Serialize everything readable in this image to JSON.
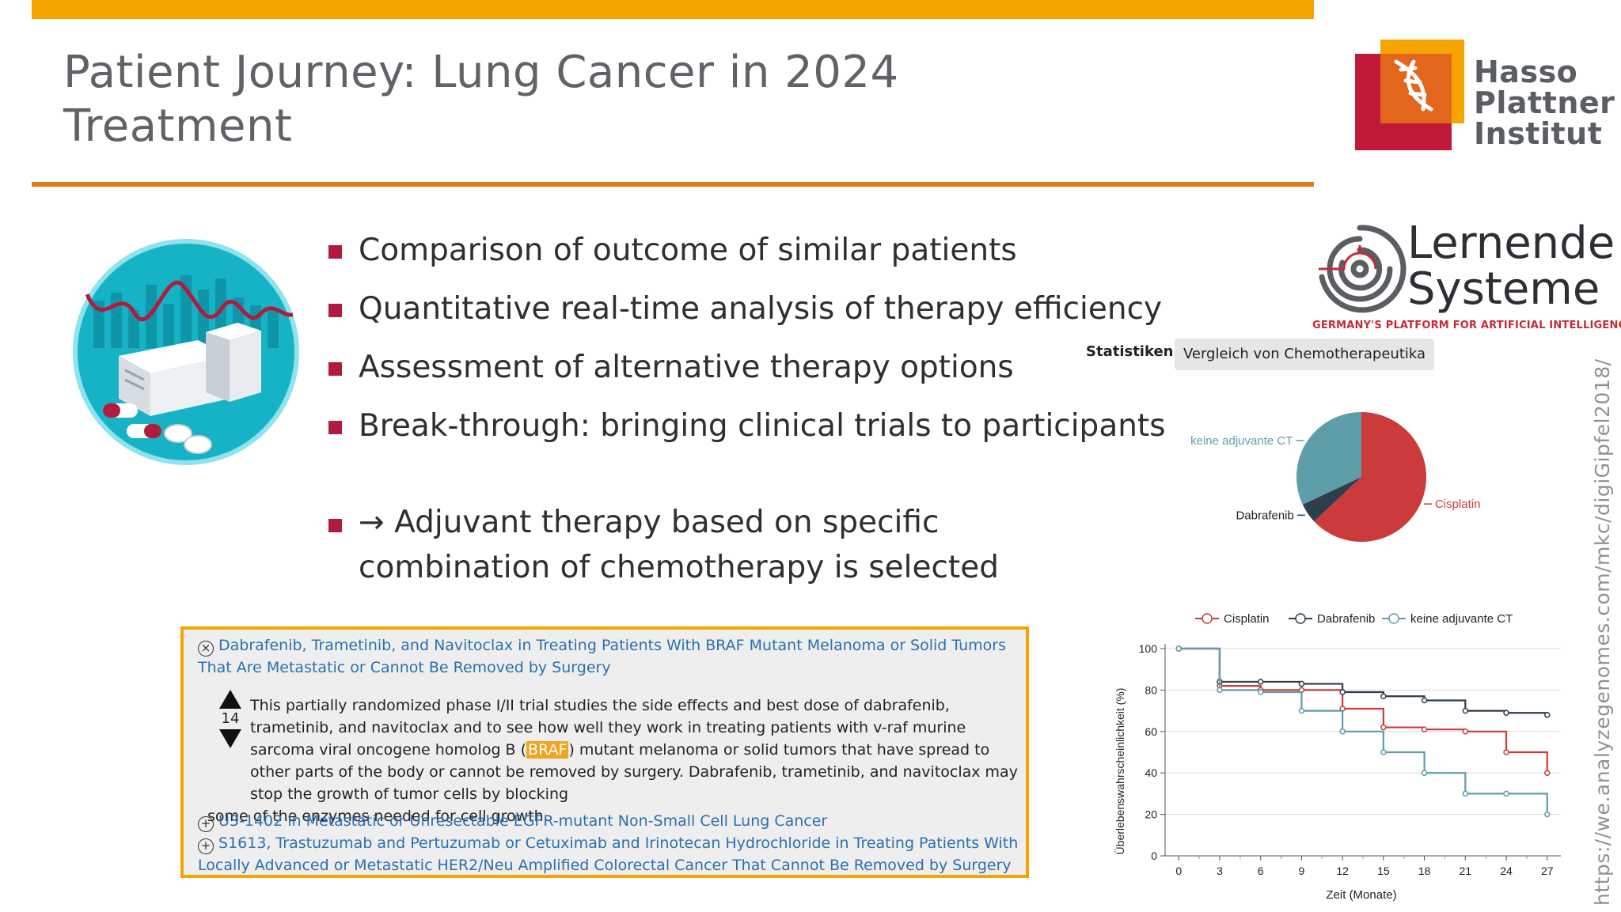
{
  "slide": {
    "title_line1": "Patient Journey: Lung Cancer in 2024",
    "title_line2": "Treatment",
    "side_url": "https://we.analyzegenomes.com/mkc/digiGipfel2018/"
  },
  "hpi_logo": {
    "line1": "Hasso",
    "line2": "Plattner",
    "line3": "Institut"
  },
  "ls_logo": {
    "word1": "Lernende",
    "word2": "Systeme",
    "tagline": "GERMANY'S PLATFORM FOR ARTIFICIAL INTELLIGENCE"
  },
  "bullets": [
    "Comparison of outcome of similar patients",
    "Quantitative real-time analysis of therapy efficiency",
    "Assessment of alternative therapy options",
    "Break-through: bringing clinical trials to participants"
  ],
  "adjuvant": {
    "line1": "→ Adjuvant therapy based on specific",
    "line2": "combination of chemotherapy is selected"
  },
  "trials": {
    "trial1": {
      "title": "Dabrafenib, Trametinib, and Navitoclax in Treating Patients With BRAF Mutant Melanoma or Solid Tumors That Are Metastatic or Cannot Be Removed by Surgery",
      "votes": "14",
      "desc_before": "This partially randomized phase I/II trial studies the side effects and best dose of dabrafenib, trametinib, and navitoclax and to see how well they work in treating patients with v-raf murine sarcoma viral oncogene homolog B (",
      "desc_highlight": "BRAF",
      "desc_mid": ") mutant melanoma or solid tumors that have spread to other parts of the body or cannot be removed by surgery. Dabrafenib, trametinib, and navitoclax may stop the growth of tumor cells by blocking",
      "desc_end": "some of the enzymes needed for cell growth."
    },
    "trial2": {
      "title": "U3-1402 in Metastatic or Unresectable EGFR-mutant Non-Small Cell Lung Cancer"
    },
    "trial3": {
      "title": "S1613, Trastuzumab and Pertuzumab or Cetuximab and Irinotecan Hydrochloride in Treating Patients With Locally Advanced or Metastatic HER2/Neu Amplified Colorectal Cancer That Cannot Be Removed by Surgery"
    },
    "collapse_icon": "circle-x-icon",
    "expand_icon": "circle-plus-icon"
  },
  "stats": {
    "label": "Statistiken:",
    "selected": "Vergleich von Chemotherapeutika"
  },
  "colors": {
    "cisplatin": "#cc3b3b",
    "dabrafenib": "#2f3e4c",
    "keine": "#5e9ea8",
    "accent_orange": "#f5a400",
    "bullet_red": "#b01c3e"
  },
  "chart_data": [
    {
      "type": "pie",
      "labels": [
        "Cisplatin",
        "Dabrafenib",
        "keine adjuvante CT"
      ],
      "values": [
        63,
        5,
        32
      ]
    },
    {
      "type": "line",
      "xlabel": "Zeit (Monate)",
      "ylabel": "Überlebenswahrscheinlichkeit (%)",
      "x_ticks": [
        0,
        3,
        6,
        9,
        12,
        15,
        18,
        21,
        24,
        27
      ],
      "y_ticks": [
        0,
        20,
        40,
        60,
        80,
        100
      ],
      "xlim": [
        -1,
        28
      ],
      "ylim": [
        0,
        100
      ],
      "grid": "horizontal",
      "legend": "top",
      "series": [
        {
          "name": "Cisplatin",
          "x": [
            0,
            3,
            6,
            9,
            12,
            15,
            18,
            21,
            24,
            27
          ],
          "values": [
            100,
            82,
            80,
            80,
            71,
            62,
            61,
            60,
            50,
            40
          ]
        },
        {
          "name": "Dabrafenib",
          "x": [
            0,
            3,
            6,
            9,
            12,
            15,
            18,
            21,
            24,
            27
          ],
          "values": [
            100,
            84,
            84,
            83,
            79,
            77,
            75,
            70,
            69,
            68
          ]
        },
        {
          "name": "keine adjuvante CT",
          "x": [
            0,
            3,
            6,
            9,
            12,
            15,
            18,
            21,
            24,
            27
          ],
          "values": [
            100,
            80,
            79,
            70,
            60,
            50,
            40,
            30,
            30,
            20
          ]
        }
      ]
    }
  ]
}
